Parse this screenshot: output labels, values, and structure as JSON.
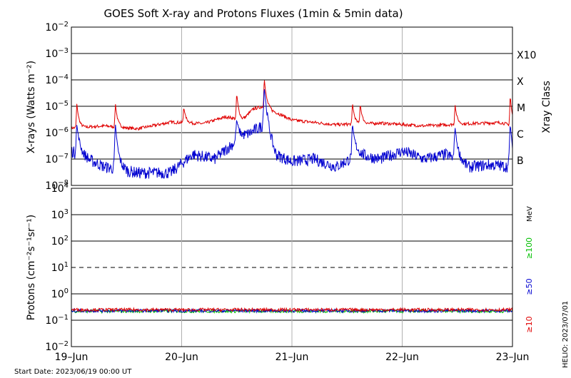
{
  "chart_data": [
    {
      "type": "line",
      "title": "GOES Soft X-ray and Protons Fluxes   (1min & 5min data)",
      "ylabel": "X-rays (Watts m⁻²)",
      "yscale": "log",
      "ylim": [
        1e-08,
        0.01
      ],
      "y_ticks": [
        {
          "base": "10",
          "exp": "−2"
        },
        {
          "base": "10",
          "exp": "−3"
        },
        {
          "base": "10",
          "exp": "−4"
        },
        {
          "base": "10",
          "exp": "−5"
        },
        {
          "base": "10",
          "exp": "−6"
        },
        {
          "base": "10",
          "exp": "−7"
        },
        {
          "base": "10",
          "exp": "−8"
        }
      ],
      "right_axis_title": "Xray Class",
      "class_labels": [
        "X10",
        "X",
        "M",
        "C",
        "B"
      ],
      "x_ticks": [
        "19–Jun",
        "20–Jun",
        "21–Jun",
        "22–Jun",
        "23–Jun"
      ],
      "series": [
        {
          "color": "#e00000",
          "baseline": [
            [
              0,
              1.5e-06
            ],
            [
              0.3,
              1.8e-06
            ],
            [
              0.6,
              1.4e-06
            ],
            [
              0.9,
              2.5e-06
            ],
            [
              1.2,
              2.2e-06
            ],
            [
              1.4,
              4e-06
            ],
            [
              1.55,
              3e-06
            ],
            [
              1.65,
              8e-06
            ],
            [
              1.75,
              1e-05
            ],
            [
              1.85,
              6e-06
            ],
            [
              2.0,
              3e-06
            ],
            [
              2.4,
              2e-06
            ],
            [
              2.8,
              2.3e-06
            ],
            [
              3.2,
              1.8e-06
            ],
            [
              3.6,
              2.2e-06
            ],
            [
              3.9,
              2.4e-06
            ],
            [
              4.0,
              1.8e-06
            ]
          ],
          "peaks": [
            [
              0.05,
              1.3e-05
            ],
            [
              0.4,
              1.2e-05
            ],
            [
              1.02,
              9e-06
            ],
            [
              1.5,
              3e-05
            ],
            [
              1.75,
              0.00011
            ],
            [
              2.55,
              1.3e-05
            ],
            [
              2.62,
              1.2e-05
            ],
            [
              3.48,
              1.1e-05
            ],
            [
              3.98,
              2.5e-05
            ]
          ]
        },
        {
          "color": "#0000d0",
          "baseline": [
            [
              0,
              2e-07
            ],
            [
              0.3,
              5e-08
            ],
            [
              0.6,
              3e-08
            ],
            [
              0.9,
              3e-08
            ],
            [
              1.1,
              1.5e-07
            ],
            [
              1.3,
              1e-07
            ],
            [
              1.5,
              5e-07
            ],
            [
              1.75,
              2e-06
            ],
            [
              1.85,
              1.5e-07
            ],
            [
              2.0,
              8e-08
            ],
            [
              2.2,
              1e-07
            ],
            [
              2.4,
              5e-08
            ],
            [
              2.6,
              1.5e-07
            ],
            [
              2.8,
              1e-07
            ],
            [
              3.0,
              2e-07
            ],
            [
              3.2,
              1e-07
            ],
            [
              3.4,
              1.5e-07
            ],
            [
              3.6,
              5e-08
            ],
            [
              3.8,
              6e-08
            ],
            [
              4.0,
              5e-08
            ]
          ],
          "peaks": [
            [
              0.05,
              2e-06
            ],
            [
              0.4,
              2e-06
            ],
            [
              1.5,
              3e-06
            ],
            [
              1.75,
              5e-05
            ],
            [
              2.55,
              2e-06
            ],
            [
              3.48,
              1.5e-06
            ],
            [
              3.98,
              2e-06
            ]
          ]
        }
      ]
    },
    {
      "type": "line",
      "ylabel": "Protons (cm⁻²s⁻¹sr⁻¹)",
      "yscale": "log",
      "ylim": [
        0.01,
        10000
      ],
      "y_ticks": [
        {
          "base": "10",
          "exp": "4"
        },
        {
          "base": "10",
          "exp": "3"
        },
        {
          "base": "10",
          "exp": "2"
        },
        {
          "base": "10",
          "exp": "1"
        },
        {
          "base": "10",
          "exp": "0"
        },
        {
          "base": "10",
          "exp": "−1"
        },
        {
          "base": "10",
          "exp": "−2"
        }
      ],
      "threshold": 10,
      "x_ticks": [
        "19–Jun",
        "20–Jun",
        "21–Jun",
        "22–Jun",
        "23–Jun"
      ],
      "unit_label": "MeV",
      "series": [
        {
          "name": "≥100",
          "color": "#00c000",
          "level": 0.22
        },
        {
          "name": "≥50",
          "color": "#0000d0",
          "level": 0.23
        },
        {
          "name": "≥10",
          "color": "#e00000",
          "level": 0.25
        }
      ]
    }
  ],
  "footer": {
    "start_date": "Start Date: 2023/06/19 00:00 UT",
    "credit": "HELIO: 2023/07/01"
  }
}
